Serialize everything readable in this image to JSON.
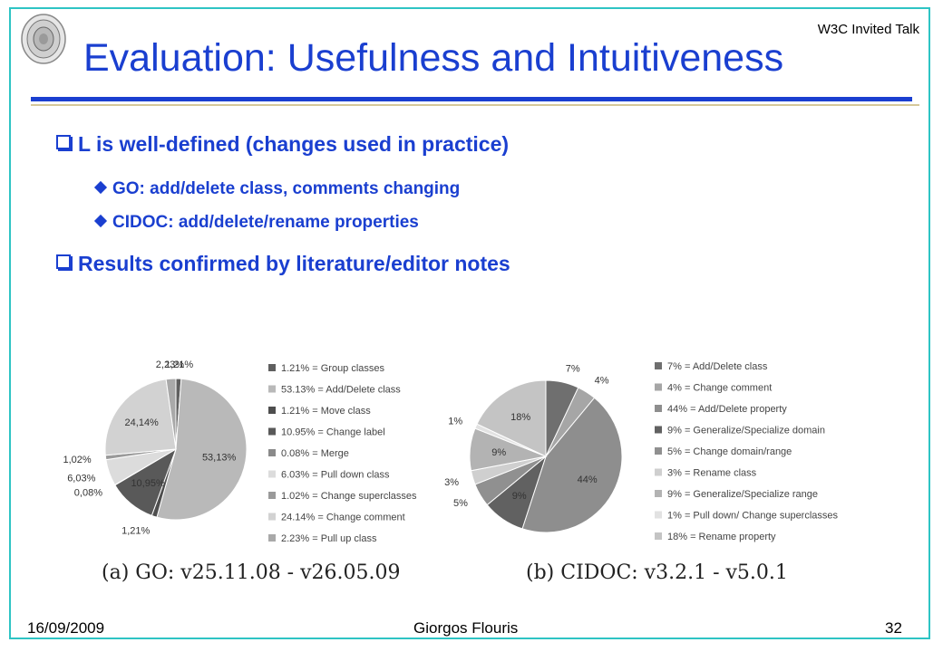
{
  "header": {
    "talk_label": "W3C Invited Talk",
    "title": "Evaluation: Usefulness and Intuitiveness"
  },
  "bullets": {
    "b1": "L is well-defined (changes used in practice)",
    "b1a": "GO: add/delete class, comments changing",
    "b1b": "CIDOC: add/delete/rename properties",
    "b2": "Results confirmed by literature/editor notes"
  },
  "charts": {
    "go_caption": "(a) GO: v25.11.08 - v26.05.09",
    "cidoc_caption": "(b) CIDOC: v3.2.1 - v5.0.1"
  },
  "chart_data": [
    {
      "type": "pie",
      "title": "(a) GO: v25.11.08 - v26.05.09",
      "slices": [
        {
          "label": "1,21%",
          "value": 1.21,
          "legend": "1.21% = Group classes",
          "color": "#5f5f5f"
        },
        {
          "label": "53,13%",
          "value": 53.13,
          "legend": "53.13% = Add/Delete class",
          "color": "#b9b9b9"
        },
        {
          "label": "1,21%",
          "value": 1.21,
          "legend": "1.21% = Move class",
          "color": "#4e4e4e"
        },
        {
          "label": "10,95%",
          "value": 10.95,
          "legend": "10.95% = Change label",
          "color": "#595959"
        },
        {
          "label": "0,08%",
          "value": 0.08,
          "legend": "0.08% = Merge",
          "color": "#8a8a8a"
        },
        {
          "label": "6,03%",
          "value": 6.03,
          "legend": "6.03% = Pull down class",
          "color": "#dcdcdc"
        },
        {
          "label": "1,02%",
          "value": 1.02,
          "legend": "1.02% = Change superclasses",
          "color": "#9a9a9a"
        },
        {
          "label": "24,14%",
          "value": 24.14,
          "legend": "24.14% = Change comment",
          "color": "#d2d2d2"
        },
        {
          "label": "2,23%",
          "value": 2.23,
          "legend": "2.23% = Pull up class",
          "color": "#a9a9a9"
        }
      ]
    },
    {
      "type": "pie",
      "title": "(b) CIDOC: v3.2.1 - v5.0.1",
      "slices": [
        {
          "label": "7%",
          "value": 7,
          "legend": "7% = Add/Delete class",
          "color": "#6f6f6f"
        },
        {
          "label": "4%",
          "value": 4,
          "legend": "4% = Change comment",
          "color": "#a6a6a6"
        },
        {
          "label": "44%",
          "value": 44,
          "legend": "44% = Add/Delete property",
          "color": "#8e8e8e"
        },
        {
          "label": "9%",
          "value": 9,
          "legend": "9% = Generalize/Specialize domain",
          "color": "#616161"
        },
        {
          "label": "5%",
          "value": 5,
          "legend": "5% = Change domain/range",
          "color": "#909090"
        },
        {
          "label": "3%",
          "value": 3,
          "legend": "3% = Rename class",
          "color": "#cfcfcf"
        },
        {
          "label": "9%",
          "value": 9,
          "legend": "9% = Generalize/Specialize range",
          "color": "#b3b3b3"
        },
        {
          "label": "1%",
          "value": 1,
          "legend": "1% = Pull down/ Change superclasses",
          "color": "#e2e2e2"
        },
        {
          "label": "18%",
          "value": 18,
          "legend": "18% = Rename property",
          "color": "#c4c4c4"
        }
      ]
    }
  ],
  "footer": {
    "date": "16/09/2009",
    "author": "Giorgos Flouris",
    "page": "32"
  }
}
